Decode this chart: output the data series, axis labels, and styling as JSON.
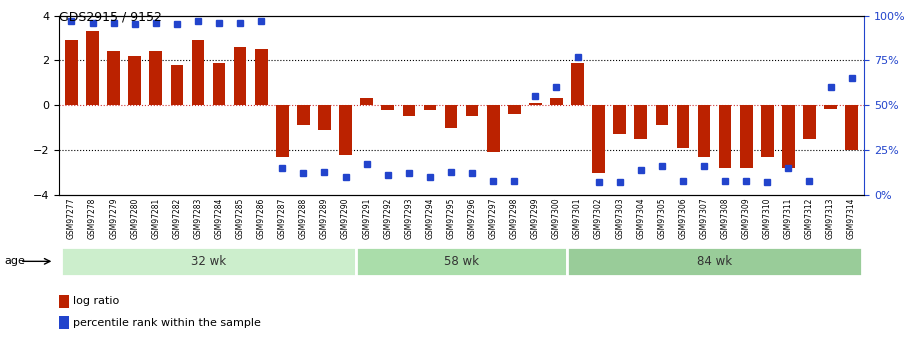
{
  "title": "GDS2915 / 9152",
  "samples": [
    "GSM97277",
    "GSM97278",
    "GSM97279",
    "GSM97280",
    "GSM97281",
    "GSM97282",
    "GSM97283",
    "GSM97284",
    "GSM97285",
    "GSM97286",
    "GSM97287",
    "GSM97288",
    "GSM97289",
    "GSM97290",
    "GSM97291",
    "GSM97292",
    "GSM97293",
    "GSM97294",
    "GSM97295",
    "GSM97296",
    "GSM97297",
    "GSM97298",
    "GSM97299",
    "GSM97300",
    "GSM97301",
    "GSM97302",
    "GSM97303",
    "GSM97304",
    "GSM97305",
    "GSM97306",
    "GSM97307",
    "GSM97308",
    "GSM97309",
    "GSM97310",
    "GSM97311",
    "GSM97312",
    "GSM97313",
    "GSM97314"
  ],
  "log_ratio": [
    2.9,
    3.3,
    2.4,
    2.2,
    2.4,
    1.8,
    2.9,
    1.9,
    2.6,
    2.5,
    -2.3,
    -0.9,
    -1.1,
    -2.2,
    0.3,
    -0.2,
    -0.5,
    -0.2,
    -1.0,
    -0.5,
    -2.1,
    -0.4,
    0.1,
    0.3,
    1.9,
    -3.0,
    -1.3,
    -1.5,
    -0.9,
    -1.9,
    -2.3,
    -2.8,
    -2.8,
    -2.3,
    -2.8,
    -1.5,
    -0.15,
    -2.0
  ],
  "percentile": [
    97,
    96,
    96,
    95,
    96,
    95,
    97,
    96,
    96,
    97,
    15,
    12,
    13,
    10,
    17,
    11,
    12,
    10,
    13,
    12,
    8,
    8,
    55,
    60,
    77,
    7,
    7,
    14,
    16,
    8,
    16,
    8,
    8,
    7,
    15,
    8,
    60,
    65
  ],
  "groups": [
    {
      "label": "32 wk",
      "start": 0,
      "end": 14
    },
    {
      "label": "58 wk",
      "start": 14,
      "end": 24
    },
    {
      "label": "84 wk",
      "start": 24,
      "end": 38
    }
  ],
  "ylim_left": [
    -4,
    4
  ],
  "bar_color": "#bb2200",
  "dot_color": "#2244cc",
  "bg_color": "#ffffff",
  "legend_bar": "log ratio",
  "legend_dot": "percentile rank within the sample"
}
